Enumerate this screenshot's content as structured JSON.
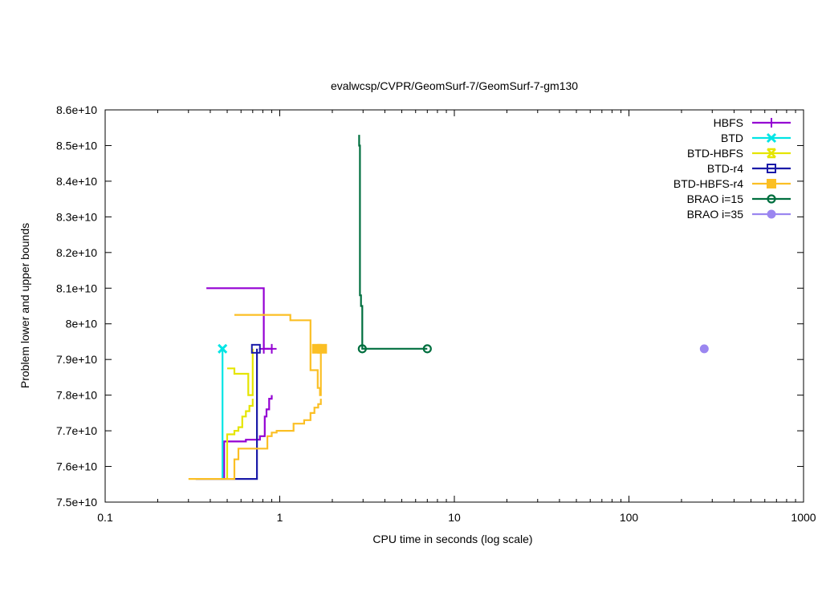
{
  "chart_data": {
    "type": "line",
    "title": "evalwcsp/CVPR/GeomSurf-7/GeomSurf-7-gm130",
    "xlabel": "CPU time in seconds (log scale)",
    "ylabel": "Problem lower and upper bounds",
    "xscale": "log",
    "xlim": [
      0.1,
      1000
    ],
    "ylim": [
      75000000000.0,
      86000000000.0
    ],
    "x_ticks": [
      {
        "value": 0.1,
        "label": "0.1"
      },
      {
        "value": 1,
        "label": "1"
      },
      {
        "value": 10,
        "label": "10"
      },
      {
        "value": 100,
        "label": "100"
      },
      {
        "value": 1000,
        "label": "1000"
      }
    ],
    "y_ticks": [
      {
        "value": 75000000000.0,
        "label": "7.5e+10"
      },
      {
        "value": 76000000000.0,
        "label": "7.6e+10"
      },
      {
        "value": 77000000000.0,
        "label": "7.7e+10"
      },
      {
        "value": 78000000000.0,
        "label": "7.8e+10"
      },
      {
        "value": 79000000000.0,
        "label": "7.9e+10"
      },
      {
        "value": 80000000000.0,
        "label": "8e+10"
      },
      {
        "value": 81000000000.0,
        "label": "8.1e+10"
      },
      {
        "value": 82000000000.0,
        "label": "8.2e+10"
      },
      {
        "value": 83000000000.0,
        "label": "8.3e+10"
      },
      {
        "value": 84000000000.0,
        "label": "8.4e+10"
      },
      {
        "value": 85000000000.0,
        "label": "8.5e+10"
      },
      {
        "value": 86000000000.0,
        "label": "8.6e+10"
      }
    ],
    "grid": false,
    "legend_position": "top-right",
    "series": [
      {
        "name": "HBFS",
        "color": "#9400d3",
        "marker": "plus",
        "upper": [
          [
            0.38,
            81000000000.0
          ],
          [
            0.81,
            81000000000.0
          ],
          [
            0.81,
            79300000000.0
          ],
          [
            0.9,
            79300000000.0
          ]
        ],
        "lower": [
          [
            0.48,
            75650000000.0
          ],
          [
            0.48,
            76700000000.0
          ],
          [
            0.64,
            76700000000.0
          ],
          [
            0.64,
            76750000000.0
          ],
          [
            0.77,
            76750000000.0
          ],
          [
            0.77,
            76850000000.0
          ],
          [
            0.82,
            76850000000.0
          ],
          [
            0.82,
            77400000000.0
          ],
          [
            0.84,
            77400000000.0
          ],
          [
            0.84,
            77600000000.0
          ],
          [
            0.87,
            77600000000.0
          ],
          [
            0.87,
            77900000000.0
          ],
          [
            0.9,
            77900000000.0
          ],
          [
            0.9,
            78000000000.0
          ]
        ],
        "markers": [
          [
            0.81,
            79300000000.0
          ],
          [
            0.9,
            79300000000.0
          ]
        ]
      },
      {
        "name": "BTD",
        "color": "#00e5e5",
        "marker": "cross",
        "upper": [],
        "lower": [
          [
            0.47,
            75650000000.0
          ],
          [
            0.47,
            79300000000.0
          ]
        ],
        "markers": [
          [
            0.47,
            79300000000.0
          ]
        ]
      },
      {
        "name": "BTD-HBFS",
        "color": "#e5e500",
        "marker": "cross-box",
        "upper": [
          [
            0.5,
            78750000000.0
          ],
          [
            0.55,
            78750000000.0
          ],
          [
            0.55,
            78600000000.0
          ],
          [
            0.66,
            78600000000.0
          ],
          [
            0.66,
            78000000000.0
          ],
          [
            0.7,
            78000000000.0
          ],
          [
            0.7,
            79300000000.0
          ]
        ],
        "lower": [
          [
            0.5,
            75650000000.0
          ],
          [
            0.5,
            76900000000.0
          ],
          [
            0.55,
            76900000000.0
          ],
          [
            0.55,
            77000000000.0
          ],
          [
            0.58,
            77000000000.0
          ],
          [
            0.58,
            77100000000.0
          ],
          [
            0.61,
            77100000000.0
          ],
          [
            0.61,
            77400000000.0
          ],
          [
            0.64,
            77400000000.0
          ],
          [
            0.64,
            77550000000.0
          ],
          [
            0.67,
            77550000000.0
          ],
          [
            0.67,
            77700000000.0
          ],
          [
            0.7,
            77700000000.0
          ],
          [
            0.7,
            77900000000.0
          ]
        ],
        "markers": []
      },
      {
        "name": "BTD-r4",
        "color": "#1a1aa8",
        "marker": "square-open",
        "upper": [
          [
            0.73,
            79300000000.0
          ]
        ],
        "lower": [
          [
            0.33,
            75650000000.0
          ],
          [
            0.74,
            75650000000.0
          ],
          [
            0.74,
            79300000000.0
          ]
        ],
        "markers": [
          [
            0.73,
            79300000000.0
          ]
        ]
      },
      {
        "name": "BTD-HBFS-r4",
        "color": "#fbbf24",
        "marker": "square-filled",
        "upper": [
          [
            0.55,
            80250000000.0
          ],
          [
            1.15,
            80250000000.0
          ],
          [
            1.15,
            80100000000.0
          ],
          [
            1.5,
            80100000000.0
          ],
          [
            1.5,
            78700000000.0
          ],
          [
            1.65,
            78700000000.0
          ],
          [
            1.65,
            78200000000.0
          ],
          [
            1.7,
            78200000000.0
          ],
          [
            1.7,
            78000000000.0
          ],
          [
            1.72,
            78000000000.0
          ],
          [
            1.72,
            79300000000.0
          ]
        ],
        "lower": [
          [
            0.3,
            75650000000.0
          ],
          [
            0.55,
            75650000000.0
          ],
          [
            0.55,
            76200000000.0
          ],
          [
            0.58,
            76200000000.0
          ],
          [
            0.58,
            76500000000.0
          ],
          [
            0.85,
            76500000000.0
          ],
          [
            0.85,
            76850000000.0
          ],
          [
            0.9,
            76850000000.0
          ],
          [
            0.9,
            76950000000.0
          ],
          [
            0.96,
            76950000000.0
          ],
          [
            0.96,
            77000000000.0
          ],
          [
            1.2,
            77000000000.0
          ],
          [
            1.2,
            77200000000.0
          ],
          [
            1.38,
            77200000000.0
          ],
          [
            1.38,
            77300000000.0
          ],
          [
            1.5,
            77300000000.0
          ],
          [
            1.5,
            77500000000.0
          ],
          [
            1.58,
            77500000000.0
          ],
          [
            1.58,
            77650000000.0
          ],
          [
            1.66,
            77650000000.0
          ],
          [
            1.66,
            77750000000.0
          ],
          [
            1.72,
            77750000000.0
          ],
          [
            1.72,
            77900000000.0
          ]
        ],
        "markers": [
          [
            1.63,
            79300000000.0
          ],
          [
            1.75,
            79300000000.0
          ]
        ]
      },
      {
        "name": "BRAO i=15",
        "color": "#006f3f",
        "marker": "circle-open",
        "upper": [
          [
            2.85,
            85300000000.0
          ],
          [
            2.85,
            85000000000.0
          ],
          [
            2.88,
            85000000000.0
          ],
          [
            2.88,
            80800000000.0
          ],
          [
            2.92,
            80800000000.0
          ],
          [
            2.92,
            80500000000.0
          ],
          [
            2.97,
            80500000000.0
          ],
          [
            2.97,
            79300000000.0
          ],
          [
            7.0,
            79300000000.0
          ]
        ],
        "lower": [],
        "markers": [
          [
            2.97,
            79300000000.0
          ],
          [
            7.0,
            79300000000.0
          ]
        ]
      },
      {
        "name": "BRAO i=35",
        "color": "#9b86f0",
        "marker": "circle-filled",
        "upper": [],
        "lower": [],
        "markers": [
          [
            270,
            79300000000.0
          ]
        ]
      }
    ]
  }
}
